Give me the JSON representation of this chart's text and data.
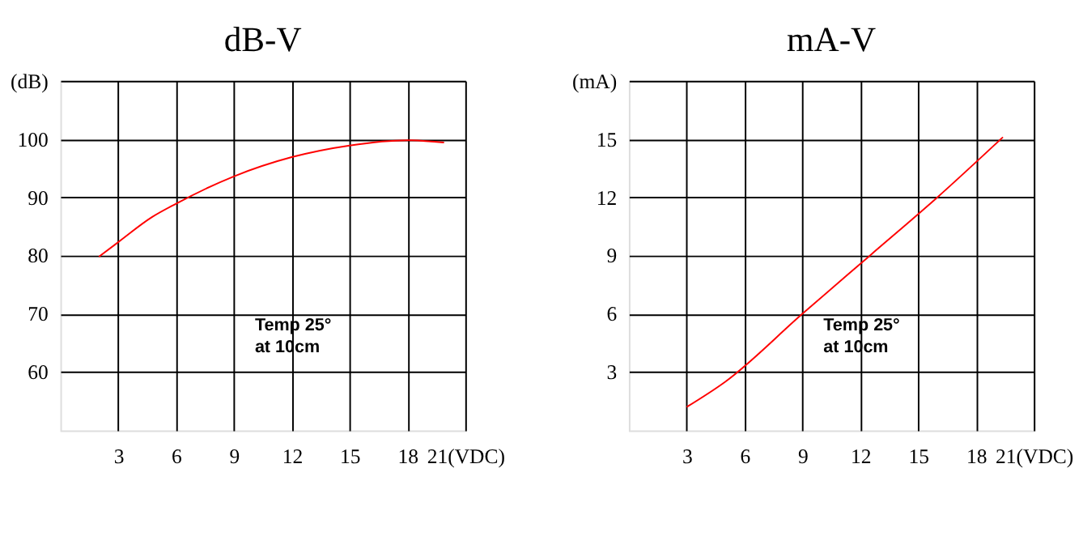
{
  "chart_data": [
    {
      "type": "line",
      "title": "dB-V",
      "x": [
        2,
        3,
        4.75,
        6,
        9,
        12,
        15,
        18,
        19.9
      ],
      "series": [
        {
          "color": "#ff0000",
          "values": [
            79.8,
            82.3,
            86.6,
            88.9,
            93.6,
            96.9,
            98.9,
            99.8,
            99.4
          ]
        }
      ],
      "xlim": [
        0,
        21
      ],
      "xticks": [
        3,
        6,
        9,
        12,
        15,
        18,
        {
          "value": 21,
          "label": "21(VDC)"
        }
      ],
      "ylim": [
        50,
        110
      ],
      "yticks": [
        60,
        70,
        80,
        90,
        100,
        {
          "value": 110,
          "label": "(dB)"
        }
      ],
      "grid": true,
      "marker": "none",
      "annotations": [
        "Temp 25°",
        "at 10cm"
      ]
    },
    {
      "type": "line",
      "title": "mA-V",
      "x": [
        3,
        5,
        9,
        12.5,
        16,
        19.4
      ],
      "series": [
        {
          "color": "#ff0000",
          "values": [
            1.2,
            2.5,
            6,
            9,
            12,
            15.1
          ]
        }
      ],
      "xlim": [
        0,
        21
      ],
      "xticks": [
        3,
        6,
        9,
        12,
        15,
        18,
        {
          "value": 21,
          "label": "21(VDC)"
        }
      ],
      "ylim": [
        0,
        18
      ],
      "yticks": [
        3,
        6,
        9,
        12,
        15,
        {
          "value": 18,
          "label": "(mA)"
        }
      ],
      "grid": true,
      "marker": "none",
      "annotations": [
        "Temp 25°",
        "at 10cm"
      ]
    }
  ]
}
